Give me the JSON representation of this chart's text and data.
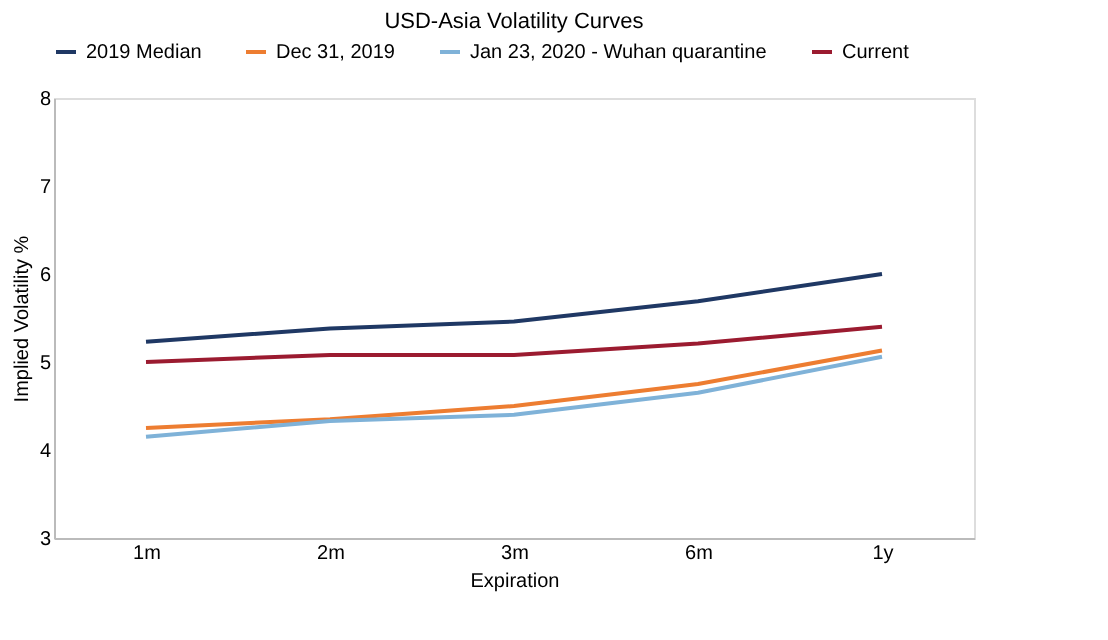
{
  "chart_data": {
    "type": "line",
    "title": "USD-Asia Volatility Curves",
    "xlabel": "Expiration",
    "ylabel": "Implied Volatility %",
    "categories": [
      "1m",
      "2m",
      "3m",
      "6m",
      "1y"
    ],
    "series": [
      {
        "name": "2019 Median",
        "color": "#1f3864",
        "values": [
          5.23,
          5.38,
          5.46,
          5.69,
          6.0
        ]
      },
      {
        "name": "Dec 31, 2019",
        "color": "#ed7d31",
        "values": [
          4.25,
          4.35,
          4.5,
          4.75,
          5.13
        ]
      },
      {
        "name": "Jan 23, 2020 - Wuhan quarantine",
        "color": "#7fb2d8",
        "values": [
          4.15,
          4.33,
          4.4,
          4.65,
          5.06
        ]
      },
      {
        "name": "Current",
        "color": "#9b1b30",
        "values": [
          5.0,
          5.08,
          5.08,
          5.21,
          5.4
        ]
      }
    ],
    "ylim": [
      3,
      8
    ],
    "yticks": [
      3,
      4,
      5,
      6,
      7,
      8
    ],
    "grid": false,
    "legend": "top",
    "marker": "none",
    "line_style": "solid"
  }
}
